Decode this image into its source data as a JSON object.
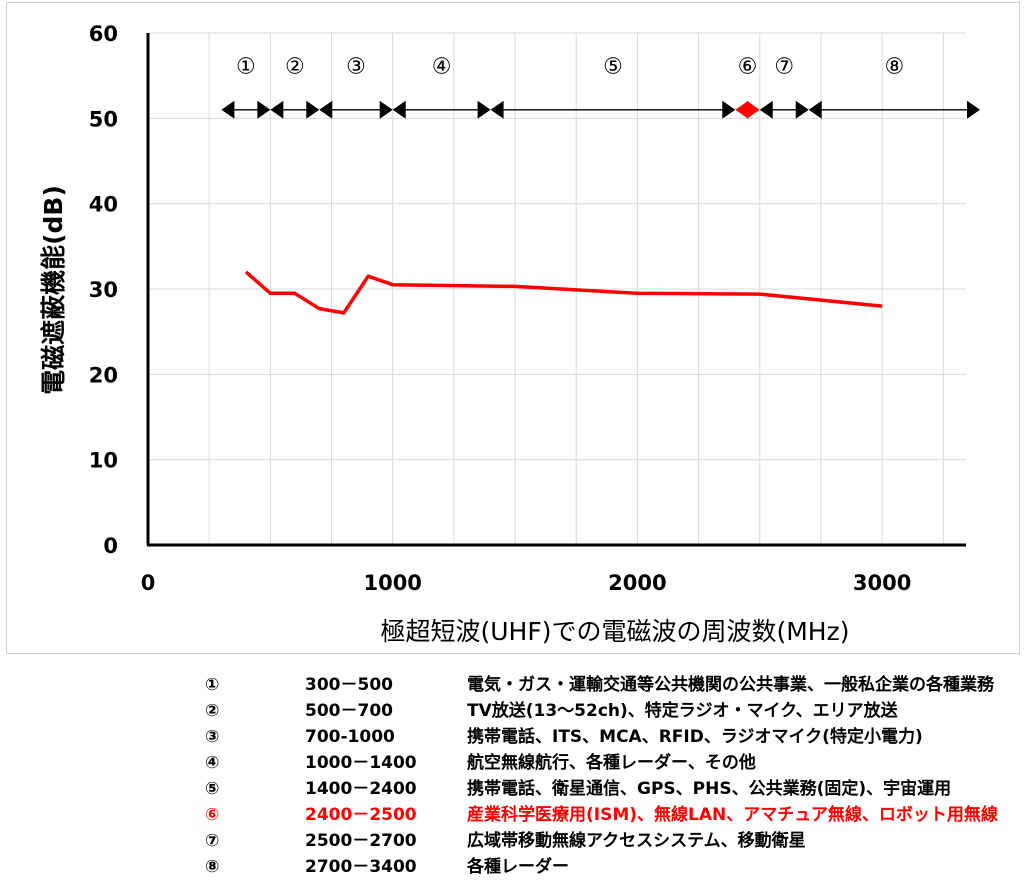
{
  "chart_data": {
    "type": "line",
    "ylabel": "電磁遮蔽機能(dB)",
    "xlabel": "極超短波(UHF)での電磁波の周波数(MHz)",
    "xlim": [
      0,
      3400
    ],
    "ylim": [
      0,
      60
    ],
    "x_ticks": [
      "0",
      "1000",
      "2000",
      "3000"
    ],
    "y_ticks": [
      "0",
      "10",
      "20",
      "30",
      "40",
      "50",
      "60"
    ],
    "grid": true,
    "series": [
      {
        "color": "#ff0000",
        "x": [
          400,
          500,
          600,
          700,
          800,
          900,
          1000,
          1500,
          2000,
          2500,
          3000
        ],
        "y": [
          32.0,
          29.5,
          29.5,
          27.7,
          27.2,
          31.5,
          30.5,
          30.3,
          29.5,
          29.4,
          28.0
        ]
      }
    ],
    "bands": [
      {
        "label": "①",
        "start": 300,
        "end": 500,
        "color": "#000000"
      },
      {
        "label": "②",
        "start": 500,
        "end": 700,
        "color": "#000000"
      },
      {
        "label": "③",
        "start": 700,
        "end": 1000,
        "color": "#000000"
      },
      {
        "label": "④",
        "start": 1000,
        "end": 1400,
        "color": "#000000"
      },
      {
        "label": "⑤",
        "start": 1400,
        "end": 2400,
        "color": "#000000"
      },
      {
        "label": "⑥",
        "start": 2400,
        "end": 2500,
        "color": "#ff0000"
      },
      {
        "label": "⑦",
        "start": 2500,
        "end": 2700,
        "color": "#000000"
      },
      {
        "label": "⑧",
        "start": 2700,
        "end": 3400,
        "color": "#000000"
      }
    ]
  },
  "legend": [
    {
      "num": "①",
      "range": "300－500",
      "use": "電気・ガス・運輸交通等公共機関の公共事業、一般私企業の各種業務",
      "highlight": false
    },
    {
      "num": "②",
      "range": "500－700",
      "use": "TV放送(13～52ch)、特定ラジオ・マイク、エリア放送",
      "highlight": false
    },
    {
      "num": "③",
      "range": "700-1000",
      "use": "携帯電話、ITS、MCA、RFID、ラジオマイク(特定小電力)",
      "highlight": false
    },
    {
      "num": "④",
      "range": "1000－1400",
      "use": "航空無線航行、各種レーダー、その他",
      "highlight": false
    },
    {
      "num": "⑤",
      "range": "1400－2400",
      "use": "携帯電話、衛星通信、GPS、PHS、公共業務(固定)、宇宙運用",
      "highlight": false
    },
    {
      "num": "⑥",
      "range": "2400－2500",
      "use": "産業科学医療用(ISM)、無線LAN、アマチュア無線、ロボット用無線",
      "highlight": true
    },
    {
      "num": "⑦",
      "range": "2500－2700",
      "use": "広域帯移動無線アクセスシステム、移動衛星",
      "highlight": false
    },
    {
      "num": "⑧",
      "range": "2700－3400",
      "use": "各種レーダー",
      "highlight": false
    }
  ]
}
